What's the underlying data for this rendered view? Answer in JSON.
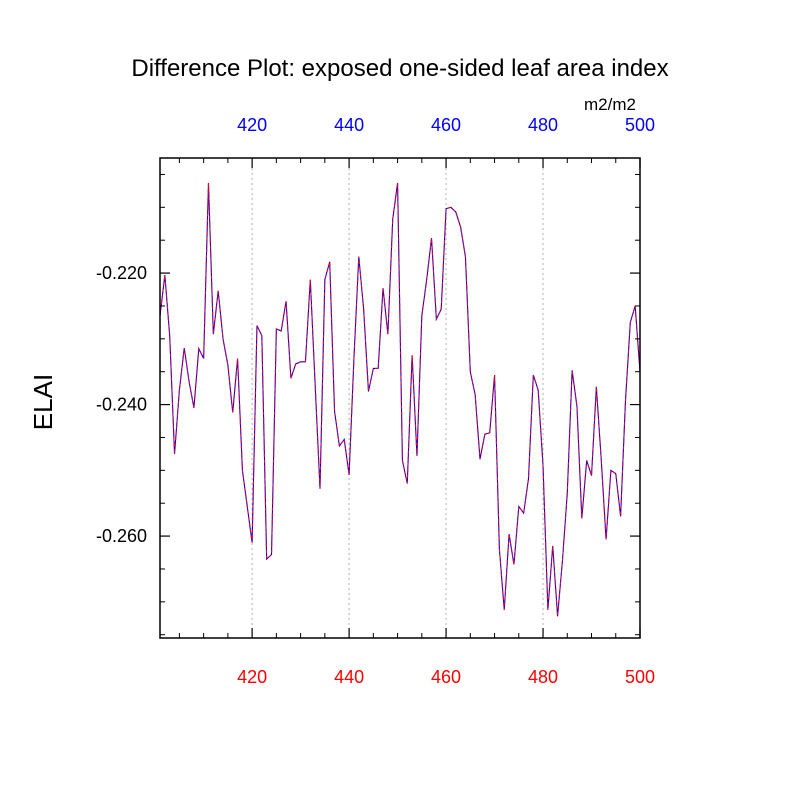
{
  "chart_data": {
    "type": "line",
    "title": "Difference Plot: exposed one-sided leaf area index",
    "units": "m2/m2",
    "ylabel": "ELAI",
    "xlim": [
      401,
      500
    ],
    "ylim": [
      -0.2755,
      -0.2025
    ],
    "x_ticks": [
      420,
      440,
      460,
      480,
      500
    ],
    "y_ticks": [
      -0.22,
      -0.24,
      -0.26
    ],
    "y_tick_labels": [
      "-0.220",
      "-0.240",
      "-0.260"
    ],
    "bottom_axis_color": "#ff0000",
    "top_axis_color": "#0000ff",
    "grid": "vertical dashed at top-axis ticks",
    "series": [
      {
        "color_solid": "#0000ff",
        "color_dashed": "#ff0000",
        "x": [
          401,
          402,
          403,
          404,
          405,
          406,
          407,
          408,
          409,
          410,
          411,
          412,
          413,
          414,
          415,
          416,
          417,
          418,
          419,
          420,
          421,
          422,
          423,
          424,
          425,
          426,
          427,
          428,
          429,
          430,
          431,
          432,
          433,
          434,
          435,
          436,
          437,
          438,
          439,
          440,
          441,
          442,
          443,
          444,
          445,
          446,
          447,
          448,
          449,
          450,
          451,
          452,
          453,
          454,
          455,
          456,
          457,
          458,
          459,
          460,
          461,
          462,
          463,
          464,
          465,
          466,
          467,
          468,
          469,
          470,
          471,
          472,
          473,
          474,
          475,
          476,
          477,
          478,
          479,
          480,
          481,
          482,
          483,
          484,
          485,
          486,
          487,
          488,
          489,
          490,
          491,
          492,
          493,
          494,
          495,
          496,
          497,
          498,
          499,
          500
        ],
        "y": [
          -0.2265,
          -0.2203,
          -0.2295,
          -0.2475,
          -0.2378,
          -0.2314,
          -0.2365,
          -0.2405,
          -0.2315,
          -0.233,
          -0.2063,
          -0.2293,
          -0.2227,
          -0.23,
          -0.234,
          -0.2412,
          -0.233,
          -0.25,
          -0.2555,
          -0.261,
          -0.228,
          -0.2295,
          -0.2635,
          -0.2628,
          -0.2285,
          -0.2288,
          -0.2243,
          -0.236,
          -0.2338,
          -0.2335,
          -0.2335,
          -0.221,
          -0.237,
          -0.2528,
          -0.221,
          -0.2183,
          -0.241,
          -0.2463,
          -0.2453,
          -0.2507,
          -0.233,
          -0.2175,
          -0.2255,
          -0.238,
          -0.2345,
          -0.2345,
          -0.2223,
          -0.2293,
          -0.2118,
          -0.2063,
          -0.2485,
          -0.252,
          -0.2325,
          -0.2478,
          -0.2265,
          -0.221,
          -0.2147,
          -0.227,
          -0.2255,
          -0.2102,
          -0.21,
          -0.2107,
          -0.213,
          -0.2175,
          -0.235,
          -0.2385,
          -0.2483,
          -0.2445,
          -0.2443,
          -0.2355,
          -0.262,
          -0.2712,
          -0.2597,
          -0.2643,
          -0.2555,
          -0.2565,
          -0.2513,
          -0.2355,
          -0.2378,
          -0.2493,
          -0.2712,
          -0.2615,
          -0.2722,
          -0.2638,
          -0.2535,
          -0.2348,
          -0.2403,
          -0.2573,
          -0.2485,
          -0.2508,
          -0.2373,
          -0.2483,
          -0.2605,
          -0.25,
          -0.2505,
          -0.257,
          -0.2395,
          -0.2275,
          -0.225,
          -0.235
        ]
      }
    ]
  }
}
